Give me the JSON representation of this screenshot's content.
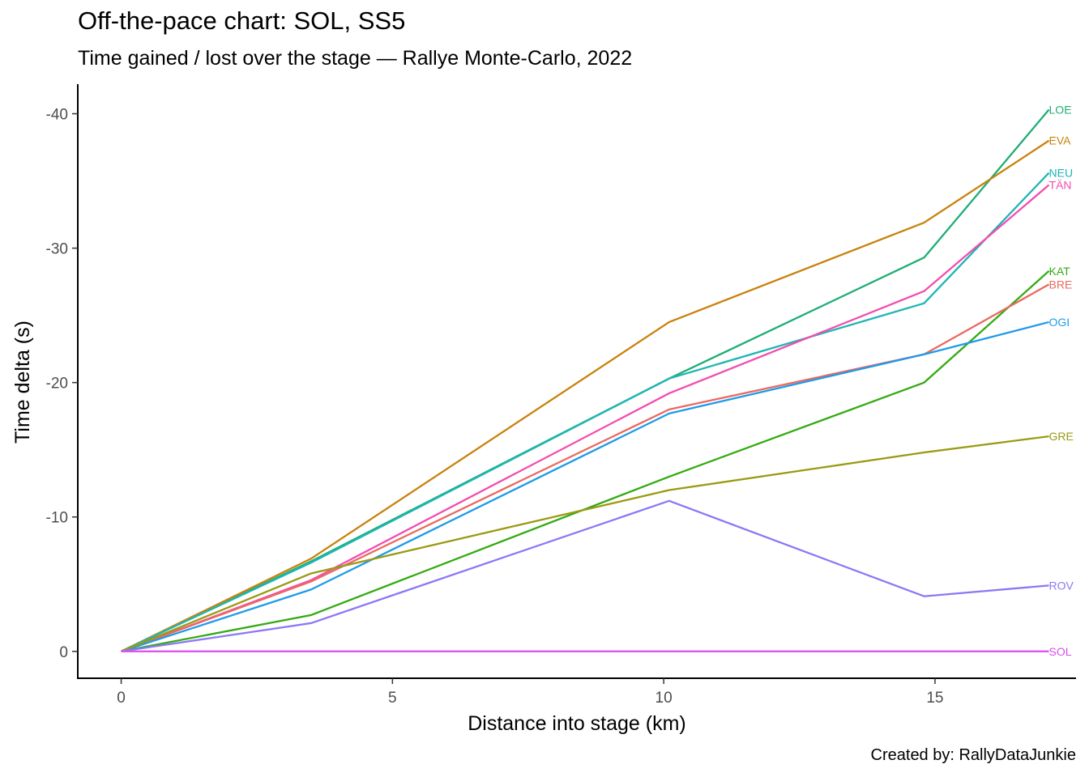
{
  "chart_data": {
    "type": "line",
    "title": "Off-the-pace chart: SOL, SS5",
    "subtitle": "Time gained / lost over the stage — Rallye Monte-Carlo, 2022",
    "caption": "Created by: RallyDataJunkie",
    "xlabel": "Distance into stage (km)",
    "ylabel": "Time delta (s)",
    "xlim": [
      -0.8,
      17.6
    ],
    "ylim": [
      2,
      -42.2
    ],
    "y_reversed": true,
    "xticks": [
      0,
      5,
      10,
      15
    ],
    "xtick_labels": [
      "0",
      "5",
      "10",
      "15"
    ],
    "yticks": [
      0,
      -10,
      -20,
      -30,
      -40
    ],
    "ytick_labels": [
      "0",
      "-10",
      "-20",
      "-30",
      "-40"
    ],
    "grid": false,
    "legend": "direct labels at line ends",
    "x": [
      0,
      3.5,
      10.1,
      14.8,
      17.1
    ],
    "series": [
      {
        "name": "LOE",
        "color": "#1FAE74",
        "values": [
          0,
          -6.7,
          -20.3,
          -29.3,
          -40.3
        ]
      },
      {
        "name": "EVA",
        "color": "#C9820C",
        "values": [
          0,
          -6.9,
          -24.5,
          -31.9,
          -38.0
        ]
      },
      {
        "name": "NEU",
        "color": "#1FB5B5",
        "values": [
          0,
          -6.6,
          -20.3,
          -25.9,
          -35.6
        ]
      },
      {
        "name": "TÄN",
        "color": "#F24DB0",
        "values": [
          0,
          -5.3,
          -19.2,
          -26.8,
          -34.7
        ]
      },
      {
        "name": "KAT",
        "color": "#33AA11",
        "values": [
          0,
          -2.7,
          -13.0,
          -20.0,
          -28.3
        ]
      },
      {
        "name": "BRE",
        "color": "#EA6961",
        "values": [
          0,
          -5.2,
          -18.0,
          -22.1,
          -27.3
        ]
      },
      {
        "name": "OGI",
        "color": "#1F9BE8",
        "values": [
          0,
          -4.6,
          -17.7,
          -22.1,
          -24.5
        ]
      },
      {
        "name": "GRE",
        "color": "#9A9A12",
        "values": [
          0,
          -5.8,
          -12.0,
          -14.8,
          -16.0
        ]
      },
      {
        "name": "ROV",
        "color": "#8B78F5",
        "values": [
          0,
          -2.1,
          -11.2,
          -4.1,
          -4.9
        ]
      },
      {
        "name": "SOL",
        "color": "#DA4CEF",
        "values": [
          0,
          0,
          0,
          0,
          0
        ]
      }
    ]
  }
}
